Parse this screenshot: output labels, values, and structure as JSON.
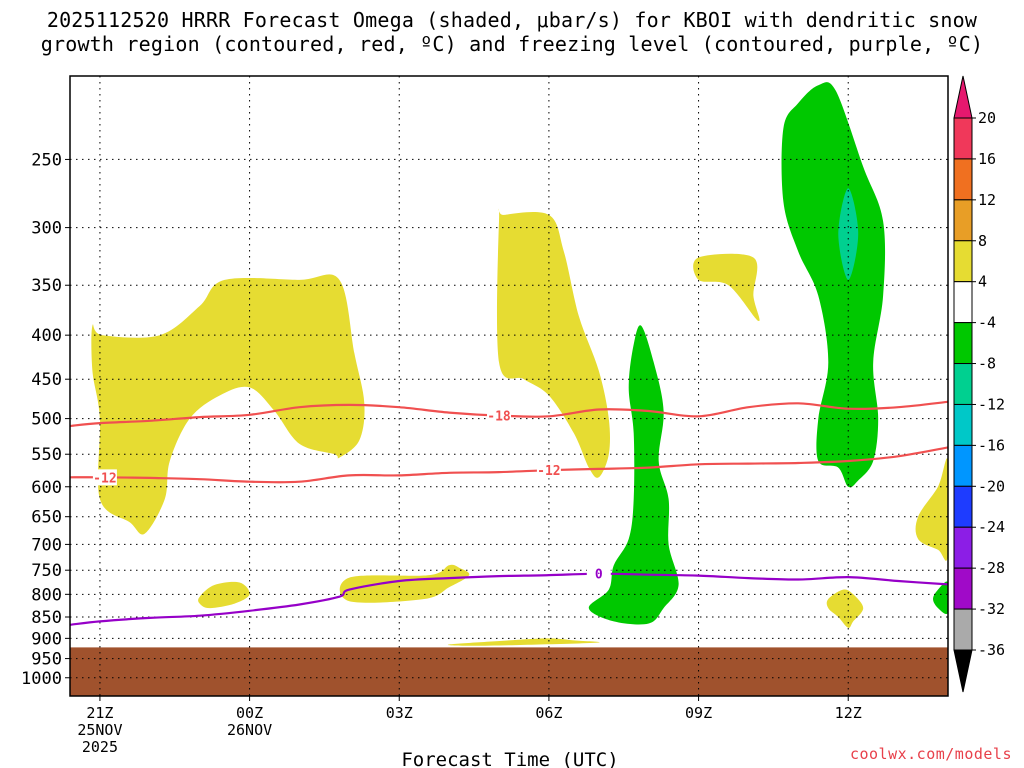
{
  "title_line1": "2025112520 HRRR Forecast Omega (shaded, μbar/s) for KBOI with dendritic snow",
  "title_line2": "growth region (contoured, red, ºC) and freezing level (contoured, purple, ºC)",
  "credit": "coolwx.com/models",
  "chart_data": {
    "type": "contour",
    "xlabel": "Forecast Time (UTC)",
    "ylabel": "",
    "x_unit": "hours from 20Z 25NOV2025",
    "xlim": [
      0.4,
      18.0
    ],
    "y_unit": "pressure (mb)",
    "ylim_top": 200,
    "ylim_bottom": 1050,
    "xticks": [
      {
        "h": 1,
        "lines": [
          "21Z",
          "25NOV",
          "2025"
        ]
      },
      {
        "h": 4,
        "lines": [
          "00Z",
          "26NOV"
        ]
      },
      {
        "h": 7,
        "lines": [
          "03Z"
        ]
      },
      {
        "h": 10,
        "lines": [
          "06Z"
        ]
      },
      {
        "h": 13,
        "lines": [
          "09Z"
        ]
      },
      {
        "h": 16,
        "lines": [
          "12Z"
        ]
      }
    ],
    "yticks": [
      250,
      300,
      350,
      400,
      450,
      500,
      550,
      600,
      650,
      700,
      750,
      800,
      850,
      900,
      950,
      1000
    ],
    "ground_level_mb": 922,
    "ground_color": "#a0522d",
    "colorbar": {
      "labels": [
        "20",
        "16",
        "12",
        "8",
        "4",
        "-4",
        "-8",
        "-12",
        "-16",
        "-20",
        "-24",
        "-28",
        "-32",
        "-36"
      ],
      "colors": [
        "#f0385a",
        "#f07020",
        "#e89e26",
        "#e6dc32",
        "#ffffff",
        "#00c800",
        "#00d090",
        "#00c8c8",
        "#0096ff",
        "#1e3cff",
        "#8c1ee6",
        "#a00ac8",
        "#aaaaaa"
      ],
      "top_arrow_color": "#e6186e",
      "bottom_arrow_color": "#000000"
    },
    "shaded_regions": [
      {
        "label": "yellow-1",
        "color": "#e6dc32",
        "points": [
          [
            0.85,
            390
          ],
          [
            1.05,
            400
          ],
          [
            2.2,
            400
          ],
          [
            3.0,
            370
          ],
          [
            3.5,
            345
          ],
          [
            5.0,
            345
          ],
          [
            5.8,
            345
          ],
          [
            6.1,
            420
          ],
          [
            6.3,
            480
          ],
          [
            6.2,
            530
          ],
          [
            5.8,
            555
          ],
          [
            5.7,
            550
          ],
          [
            5.0,
            535
          ],
          [
            4.5,
            490
          ],
          [
            4.0,
            460
          ],
          [
            3.4,
            470
          ],
          [
            2.8,
            500
          ],
          [
            2.4,
            560
          ],
          [
            2.3,
            620
          ],
          [
            1.9,
            680
          ],
          [
            1.6,
            660
          ],
          [
            1.0,
            620
          ],
          [
            1.0,
            500
          ],
          [
            0.85,
            440
          ]
        ]
      },
      {
        "label": "yellow-2",
        "color": "#e6dc32",
        "points": [
          [
            9.0,
            295
          ],
          [
            9.1,
            290
          ],
          [
            10.0,
            290
          ],
          [
            10.3,
            320
          ],
          [
            10.6,
            380
          ],
          [
            11.0,
            440
          ],
          [
            11.2,
            500
          ],
          [
            11.2,
            550
          ],
          [
            11.0,
            585
          ],
          [
            10.8,
            570
          ],
          [
            10.5,
            520
          ],
          [
            10.0,
            470
          ],
          [
            9.5,
            450
          ],
          [
            9.0,
            430
          ]
        ]
      },
      {
        "label": "yellow-3",
        "color": "#e6dc32",
        "points": [
          [
            13.0,
            325
          ],
          [
            14.1,
            325
          ],
          [
            14.1,
            360
          ],
          [
            14.2,
            385
          ],
          [
            13.6,
            350
          ],
          [
            13.0,
            345
          ]
        ]
      },
      {
        "label": "yellow-4",
        "color": "#e6dc32",
        "points": [
          [
            3.0,
            805
          ],
          [
            3.3,
            780
          ],
          [
            3.8,
            775
          ],
          [
            4.0,
            800
          ],
          [
            3.7,
            820
          ],
          [
            3.2,
            830
          ],
          [
            3.0,
            820
          ]
        ]
      },
      {
        "label": "yellow-5",
        "color": "#e6dc32",
        "points": [
          [
            6.0,
            765
          ],
          [
            7.6,
            760
          ],
          [
            8.0,
            740
          ],
          [
            8.2,
            745
          ],
          [
            8.4,
            760
          ],
          [
            8.0,
            785
          ],
          [
            7.5,
            810
          ],
          [
            6.0,
            815
          ]
        ]
      },
      {
        "label": "yellow-6",
        "color": "#e6dc32",
        "points": [
          [
            8.0,
            915
          ],
          [
            9.2,
            905
          ],
          [
            10.0,
            900
          ],
          [
            10.5,
            905
          ],
          [
            11.0,
            910
          ],
          [
            9.8,
            915
          ],
          [
            8.5,
            918
          ]
        ]
      },
      {
        "label": "yellow-7",
        "color": "#e6dc32",
        "points": [
          [
            15.6,
            810
          ],
          [
            15.9,
            790
          ],
          [
            16.1,
            800
          ],
          [
            16.3,
            830
          ],
          [
            16.1,
            860
          ],
          [
            16.0,
            875
          ],
          [
            15.8,
            850
          ],
          [
            15.6,
            830
          ]
        ]
      },
      {
        "label": "yellow-8",
        "color": "#e6dc32",
        "points": [
          [
            18.0,
            560
          ],
          [
            17.8,
            600
          ],
          [
            17.4,
            650
          ],
          [
            17.4,
            690
          ],
          [
            17.8,
            710
          ],
          [
            18.0,
            720
          ]
        ]
      },
      {
        "label": "green-1",
        "color": "#00c800",
        "points": [
          [
            14.7,
            230
          ],
          [
            15.0,
            215
          ],
          [
            15.4,
            205
          ],
          [
            15.75,
            208
          ],
          [
            16.3,
            255
          ],
          [
            16.7,
            295
          ],
          [
            16.7,
            360
          ],
          [
            16.5,
            430
          ],
          [
            16.6,
            500
          ],
          [
            16.5,
            560
          ],
          [
            16.2,
            590
          ],
          [
            16.0,
            600
          ],
          [
            15.8,
            570
          ],
          [
            15.4,
            560
          ],
          [
            15.4,
            500
          ],
          [
            15.6,
            430
          ],
          [
            15.4,
            360
          ],
          [
            15.0,
            320
          ],
          [
            14.7,
            280
          ]
        ]
      },
      {
        "label": "teal-1",
        "color": "#00d090",
        "points": [
          [
            16.0,
            270
          ],
          [
            16.2,
            305
          ],
          [
            16.0,
            345
          ],
          [
            15.8,
            305
          ]
        ]
      },
      {
        "label": "green-2",
        "color": "#00c800",
        "points": [
          [
            11.7,
            410
          ],
          [
            11.85,
            390
          ],
          [
            12.1,
            430
          ],
          [
            12.3,
            490
          ],
          [
            12.2,
            560
          ],
          [
            12.4,
            620
          ],
          [
            12.4,
            700
          ],
          [
            12.6,
            780
          ],
          [
            12.3,
            830
          ],
          [
            12.0,
            865
          ],
          [
            11.3,
            860
          ],
          [
            10.8,
            830
          ],
          [
            11.2,
            790
          ],
          [
            11.3,
            740
          ],
          [
            11.6,
            690
          ],
          [
            11.7,
            620
          ],
          [
            11.7,
            520
          ],
          [
            11.6,
            460
          ]
        ]
      },
      {
        "label": "green-3",
        "color": "#00c800",
        "points": [
          [
            17.7,
            810
          ],
          [
            17.8,
            790
          ],
          [
            18.0,
            775
          ],
          [
            18.0,
            840
          ],
          [
            17.8,
            830
          ]
        ]
      }
    ],
    "contours": [
      {
        "label": "-18",
        "color": "#f05050",
        "label_at": 9.0,
        "points": [
          [
            0.4,
            510
          ],
          [
            1.0,
            506
          ],
          [
            2.0,
            503
          ],
          [
            3.0,
            498
          ],
          [
            4.0,
            495
          ],
          [
            5.0,
            485
          ],
          [
            6.0,
            482
          ],
          [
            7.0,
            485
          ],
          [
            8.0,
            492
          ],
          [
            9.0,
            496
          ],
          [
            10.0,
            497
          ],
          [
            11.0,
            488
          ],
          [
            12.0,
            490
          ],
          [
            13.0,
            497
          ],
          [
            14.0,
            485
          ],
          [
            15.0,
            480
          ],
          [
            16.0,
            487
          ],
          [
            17.0,
            485
          ],
          [
            18.0,
            478
          ]
        ]
      },
      {
        "label": "-12",
        "color": "#f05050",
        "label_at": 1.1,
        "label_at2": 10.0,
        "points": [
          [
            0.4,
            585
          ],
          [
            1.0,
            585
          ],
          [
            2.0,
            586
          ],
          [
            3.0,
            588
          ],
          [
            4.0,
            592
          ],
          [
            5.0,
            592
          ],
          [
            6.0,
            582
          ],
          [
            7.0,
            582
          ],
          [
            8.0,
            578
          ],
          [
            9.0,
            577
          ],
          [
            10.0,
            574
          ],
          [
            11.0,
            572
          ],
          [
            12.0,
            570
          ],
          [
            13.0,
            565
          ],
          [
            14.0,
            564
          ],
          [
            15.0,
            563
          ],
          [
            16.0,
            560
          ],
          [
            17.0,
            553
          ],
          [
            18.0,
            540
          ]
        ]
      },
      {
        "label": "0",
        "color": "#9600c8",
        "label_at": 11.0,
        "points": [
          [
            0.4,
            868
          ],
          [
            1.0,
            860
          ],
          [
            2.0,
            852
          ],
          [
            3.0,
            847
          ],
          [
            4.0,
            836
          ],
          [
            5.0,
            822
          ],
          [
            5.8,
            805
          ],
          [
            6.0,
            790
          ],
          [
            7.0,
            772
          ],
          [
            8.0,
            766
          ],
          [
            9.0,
            762
          ],
          [
            10.0,
            760
          ],
          [
            11.0,
            757
          ],
          [
            12.0,
            759
          ],
          [
            13.0,
            761
          ],
          [
            14.0,
            766
          ],
          [
            15.0,
            769
          ],
          [
            16.0,
            764
          ],
          [
            17.0,
            772
          ],
          [
            18.0,
            779
          ]
        ]
      }
    ]
  }
}
